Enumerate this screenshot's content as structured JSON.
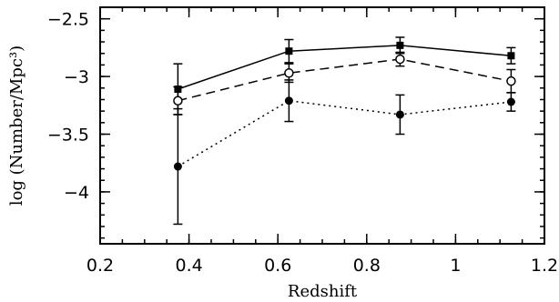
{
  "chart_data": {
    "type": "line",
    "title": "",
    "xlabel": "Redshift",
    "ylabel": "log (Number/Mpc³)",
    "xlim": [
      0.2,
      1.2
    ],
    "ylim": [
      -4.45,
      -2.4
    ],
    "xticks": [
      0.2,
      0.4,
      0.6,
      0.8,
      1.0,
      1.2
    ],
    "xtick_labels": [
      "0.2",
      "0.4",
      "0.6",
      "0.8",
      "1",
      "1.2"
    ],
    "yticks": [
      -2.5,
      -3.0,
      -3.5,
      -4.0
    ],
    "ytick_labels": [
      "−2.5",
      "−3",
      "−3.5",
      "−4"
    ],
    "grid": false,
    "legend": false,
    "series": [
      {
        "line_style": "solid",
        "marker": "filled-square",
        "points": [
          {
            "x": 0.375,
            "y": -3.11,
            "err_low": 0.22,
            "err_high": 0.22
          },
          {
            "x": 0.625,
            "y": -2.78,
            "err_low": 0.1,
            "err_high": 0.1
          },
          {
            "x": 0.875,
            "y": -2.73,
            "err_low": 0.07,
            "err_high": 0.07
          },
          {
            "x": 1.125,
            "y": -2.82,
            "err_low": 0.07,
            "err_high": 0.07
          }
        ]
      },
      {
        "line_style": "dashed",
        "marker": "open-circle",
        "points": [
          {
            "x": 0.375,
            "y": -3.21,
            "err_low": 0.12,
            "err_high": 0.12
          },
          {
            "x": 0.625,
            "y": -2.97,
            "err_low": 0.08,
            "err_high": 0.08
          },
          {
            "x": 0.875,
            "y": -2.85,
            "err_low": 0.06,
            "err_high": 0.06
          },
          {
            "x": 1.125,
            "y": -3.04,
            "err_low": 0.1,
            "err_high": 0.1
          }
        ]
      },
      {
        "line_style": "dotted",
        "marker": "filled-circle",
        "points": [
          {
            "x": 0.375,
            "y": -3.78,
            "err_low": 0.5,
            "err_high": 0.5
          },
          {
            "x": 0.625,
            "y": -3.21,
            "err_low": 0.18,
            "err_high": 0.18
          },
          {
            "x": 0.875,
            "y": -3.33,
            "err_low": 0.17,
            "err_high": 0.17
          },
          {
            "x": 1.125,
            "y": -3.22,
            "err_low": 0.08,
            "err_high": 0.08
          }
        ]
      }
    ]
  }
}
